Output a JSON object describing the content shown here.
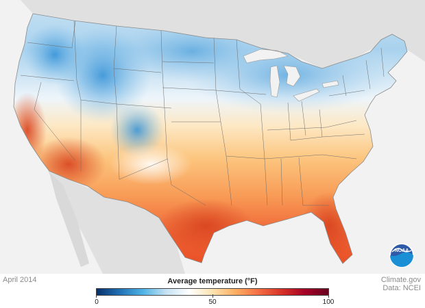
{
  "map": {
    "date": "April 2014",
    "legend": {
      "title": "Average temperature (°F)",
      "ticks": [
        "0",
        "50",
        "100"
      ],
      "range": [
        0,
        100
      ],
      "stops": [
        "#08306b",
        "#2171b5",
        "#4fb3e6",
        "#c6e2f2",
        "#ffffff",
        "#fde3b0",
        "#fdae61",
        "#f46d43",
        "#d73027",
        "#a50026",
        "#67001f"
      ]
    },
    "credit": {
      "line1": "Climate.gov",
      "line2": "Data: NCEI"
    },
    "logo_text": "NOAA",
    "colors": {
      "background": "#f2f2f2",
      "land_outside": "#e0e0e0",
      "cold": "#2f7fc4",
      "cool": "#a9d2ee",
      "neutral": "#f7f7f7",
      "warm": "#fcc57e",
      "hot": "#ee6234"
    }
  }
}
